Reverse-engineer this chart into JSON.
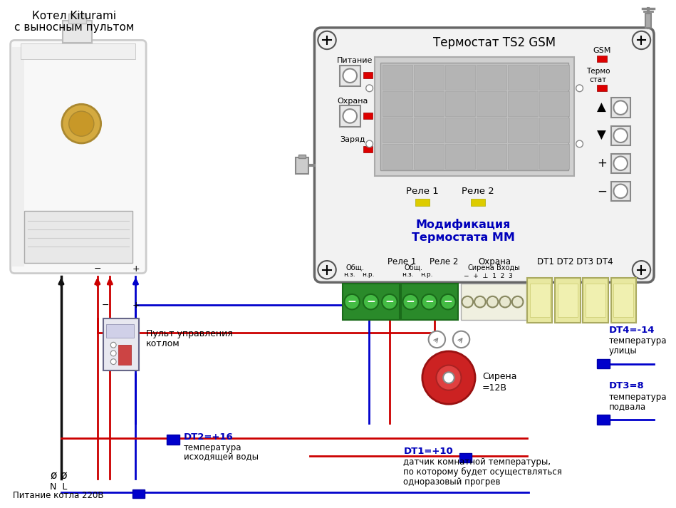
{
  "bg_color": "#ffffff",
  "title_boiler_line1": "Котел Kiturami",
  "title_boiler_line2": "с выносным пультом",
  "title_thermostat": "Термостат TS2 GSM",
  "mod_text_line1": "Модификация",
  "mod_text_line2": "Термостата ММ",
  "gsm_label": "GSM",
  "termo_label": "Термо\nстат",
  "питание_label": "Питание",
  "охрана_label": "Охрана",
  "заряд_label": "Заряд",
  "rele1_label": "Реле 1",
  "rele2_label": "Реле 2",
  "bottom_label1": "Реле 1",
  "bottom_label2": "Реле 2",
  "bottom_label3": "Охрана",
  "bottom_label4": "DT1 DT2 DT3 DT4",
  "obsh1_label": "Общ.",
  "nz1_label": "н.з.",
  "nr1_label": "н.р.",
  "obsh2_label": "Общ.",
  "nz2_label": "н.з.",
  "nr2_label": "н.р.",
  "sirena_term_label": "Сирена",
  "vhody_term_label": "Входы",
  "minus_pm": "−  +  ⊥  1  2  3",
  "pult_label_line1": "Пульт управления",
  "pult_label_line2": "котлом",
  "питание_котла": "Питание котла 220В",
  "NL_label": "N  L",
  "DT1_label": "DT1=+10",
  "DT1_desc_line1": "датчик комнатной температуры,",
  "DT1_desc_line2": "по которому будет осуществляться",
  "DT1_desc_line3": "одноразовый прогрев",
  "DT2_label": "DT2=+16",
  "DT2_desc_line1": "температура",
  "DT2_desc_line2": "исходящей воды",
  "DT3_label": "DT3=8",
  "DT3_desc_line1": "температура",
  "DT3_desc_line2": "подвала",
  "DT4_label": "DT4=-14",
  "DT4_desc_line1": "температура",
  "DT4_desc_line2": "улицы",
  "sirena_desc_line1": "Сирена",
  "sirena_desc_line2": "=12В",
  "wire_blue": "#0000cc",
  "wire_red": "#cc0000",
  "wire_black": "#111111",
  "led_red": "#dd0000",
  "led_yellow": "#ddcc00",
  "blue_text": "#0000bb",
  "terminal_green": "#2a8a2a",
  "term_yellow_bg": "#e8e8a0",
  "boiler_bg": "#f0f0f0",
  "boiler_panel_bg": "#e8e8e8",
  "boiler_border": "#aaaaaa",
  "thermo_box_bg": "#f2f2f2",
  "thermo_box_border": "#666666",
  "screen_outer": "#c8c8c8",
  "screen_inner": "#b8b8b8",
  "screen_grid": "#a8a8a8",
  "btn_bg": "#e4e4e4",
  "btn_border": "#888888"
}
